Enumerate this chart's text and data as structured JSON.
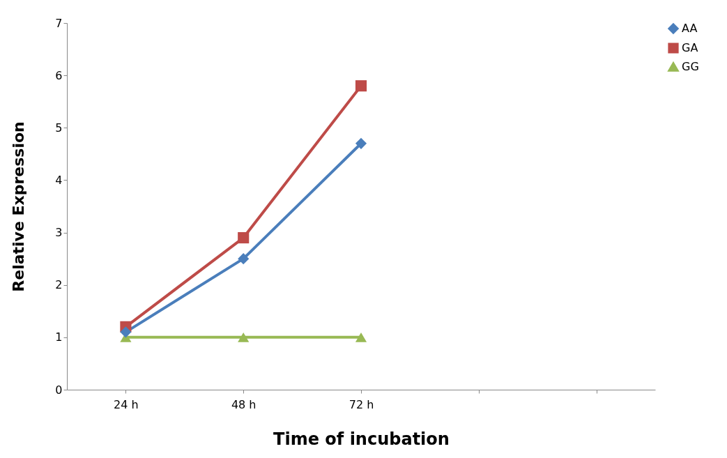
{
  "chart_data": {
    "type": "line",
    "xlabel": "Time of incubation",
    "ylabel": "Relative Expression",
    "categories": [
      "24 h",
      "48 h",
      "72 h",
      null,
      null
    ],
    "series": [
      {
        "name": "AA",
        "color": "#4a7ebb",
        "marker": "diamond",
        "values": [
          1.1,
          2.5,
          4.7,
          null,
          null
        ]
      },
      {
        "name": "GA",
        "color": "#be4b48",
        "marker": "square",
        "values": [
          1.2,
          2.9,
          5.8,
          null,
          null
        ]
      },
      {
        "name": "GG",
        "color": "#98b954",
        "marker": "triangle",
        "values": [
          1,
          1,
          1,
          null,
          null
        ]
      }
    ],
    "ylim": [
      0,
      7
    ],
    "yticks": [
      0,
      1,
      2,
      3,
      4,
      5,
      6,
      7
    ],
    "grid": false,
    "legend": "right",
    "line_style": "solid"
  }
}
